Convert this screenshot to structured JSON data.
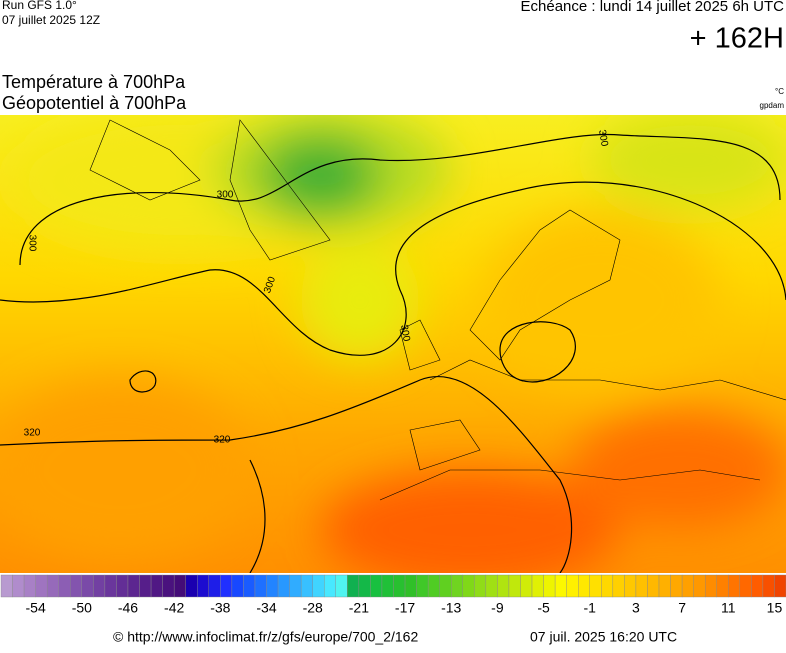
{
  "header": {
    "run": "Run GFS 1.0°",
    "run_date": "07 juillet 2025 12Z",
    "valid": "Echéance : lundi 14 juillet 2025 6h UTC",
    "lead": "+ 162H"
  },
  "title": {
    "line1": "Température à 700hPa",
    "line2": "Géopotentiel à 700hPa",
    "unit1": "°C",
    "unit2": "gpdam"
  },
  "contour_labels": [
    "300",
    "300",
    "300",
    "300",
    "300",
    "320",
    "320"
  ],
  "colorbar": {
    "labels": [
      "-54",
      "-50",
      "-46",
      "-42",
      "-38",
      "-34",
      "-28",
      "-21",
      "-17",
      "-13",
      "-9",
      "-5",
      "-1",
      "3",
      "7",
      "11",
      "15"
    ],
    "colors": [
      "#b89ad0",
      "#b08ccc",
      "#a880c6",
      "#9f74c0",
      "#966aba",
      "#8c5eb4",
      "#8354ae",
      "#7a4aa8",
      "#7240a2",
      "#6a369c",
      "#632e96",
      "#5c2690",
      "#561e8a",
      "#501884",
      "#4a127e",
      "#440c78",
      "#1a00b0",
      "#1c0cd0",
      "#1e1ee8",
      "#2030ff",
      "#1848ff",
      "#1a5cff",
      "#1e70ff",
      "#2284ff",
      "#2898ff",
      "#30acff",
      "#38c0ff",
      "#40d4ff",
      "#48e8ff",
      "#50f4f0",
      "#10b050",
      "#14b848",
      "#18c040",
      "#20c038",
      "#28c030",
      "#30c028",
      "#40c828",
      "#50cc24",
      "#60d020",
      "#70d420",
      "#80d818",
      "#90dc18",
      "#a0e014",
      "#b0e410",
      "#c0e80c",
      "#d0ec08",
      "#e0f004",
      "#eef400",
      "#fcf800",
      "#fff000",
      "#ffe800",
      "#ffe000",
      "#ffd800",
      "#ffd000",
      "#ffc800",
      "#ffc000",
      "#ffb800",
      "#ffb000",
      "#ffa800",
      "#ffa000",
      "#ff9800",
      "#ff8c00",
      "#ff8000",
      "#ff7400",
      "#ff6800",
      "#ff5c00",
      "#f85000",
      "#f04400"
    ]
  },
  "footer": {
    "url": "© http://www.infoclimat.fr/z/gfs/europe/700_2/162",
    "timestamp": "07 juil. 2025 16:20 UTC"
  }
}
